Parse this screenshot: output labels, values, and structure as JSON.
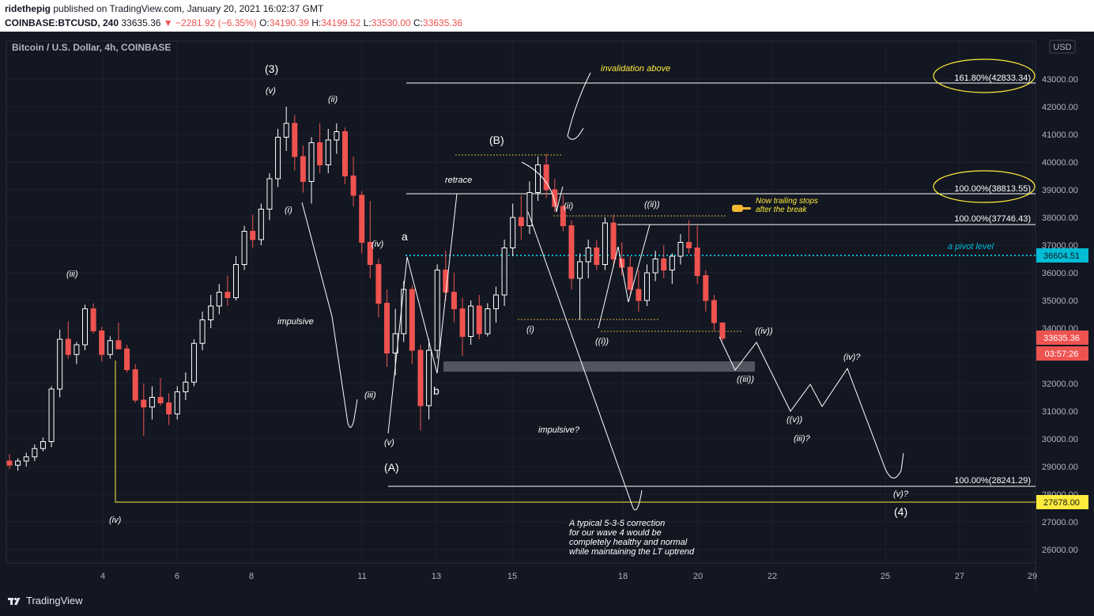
{
  "header": {
    "user": "ridethepig",
    "published": " published on TradingView.com, January 20, 2021 16:02:37 GMT",
    "symbol": "COINBASE:BTCUSD, 240",
    "last": "33635.36",
    "change": "−2281.92 (−6.35%)",
    "o_label": "O:",
    "o": "34190.39",
    "h_label": "H:",
    "h": "34199.52",
    "l_label": "L:",
    "l": "33530.00",
    "c_label": "C:",
    "c": "33635.36"
  },
  "chart_title": "Bitcoin / U.S. Dollar, 4h, COINBASE",
  "currency": "USD",
  "price_badges": {
    "pivot": "36604.51",
    "last": "33635.36",
    "countdown": "03:57:26",
    "yellow": "27678.00"
  },
  "fib_labels": {
    "f1618": "161.80%(42833.34)",
    "f100a": "100.00%(38813.55)",
    "f100b": "100.00%(37746.43)",
    "f100c": "100.00%(28241.29)"
  },
  "annotations": {
    "w3": "(3)",
    "v_top": "(v)",
    "ii_top": "(ii)",
    "iii_left": "(iii)",
    "i_mid": "(i)",
    "impulsive": "impulsive",
    "iv_mid": "(iv)",
    "iii_low": "(iii)",
    "v_low": "(v)",
    "A": "(A)",
    "a": "a",
    "b": "b",
    "retrace": "retrace",
    "B": "(B)",
    "invalidation": "invalidation above",
    "ii_b": "(ii)",
    "i_b": "(i)",
    "ii2": "((ii))",
    "i2": "((i))",
    "trailing1": "Now trailing stops",
    "trailing2": "after the break",
    "pivot_text": "a pivot level",
    "iv2": "((iv))",
    "iii2": "((iii))",
    "v2": "((v))",
    "iii_q": "(iii)?",
    "iv_q": "(iv)?",
    "v_q": "(v)?",
    "w4": "(4)",
    "impulsive_q": "impulsive?",
    "iv_left": "(iv)",
    "note1": "A typical 5-3-5 correction",
    "note2": "for our wave 4 would be",
    "note3": "completely healthy and normal",
    "note4": "while maintaining the LT uptrend"
  },
  "footer": {
    "brand": "TradingView"
  },
  "colors": {
    "up": "#ffffff",
    "down": "#ef5350",
    "pivot": "#00bcd4",
    "yellow": "#ffeb3b",
    "bg": "#131722"
  },
  "chart_data": {
    "type": "candlestick",
    "title": "Bitcoin / U.S. Dollar, 4h, COINBASE",
    "y_ticks": [
      26000,
      27000,
      28000,
      29000,
      30000,
      31000,
      32000,
      33000,
      34000,
      35000,
      36000,
      37000,
      38000,
      39000,
      40000,
      41000,
      42000,
      43000
    ],
    "x_ticks": [
      "4",
      "6",
      "8",
      "11",
      "13",
      "15",
      "18",
      "20",
      "22",
      "25",
      "27",
      "29"
    ],
    "ylim": [
      25400,
      44300
    ],
    "levels": {
      "fib_161_8": 42833.34,
      "fib_100_a": 38813.55,
      "fib_100_b": 37746.43,
      "fib_100_c": 28241.29,
      "pivot": 36604.51,
      "yellow_support": 27678.0,
      "last": 33635.36
    },
    "candles": [
      [
        29200,
        29450,
        28900,
        29050
      ],
      [
        29050,
        29300,
        28850,
        29200
      ],
      [
        29200,
        29500,
        29000,
        29350
      ],
      [
        29350,
        29800,
        29200,
        29650
      ],
      [
        29650,
        30050,
        29550,
        29900
      ],
      [
        29900,
        31900,
        29700,
        31800
      ],
      [
        31800,
        33950,
        31500,
        33600
      ],
      [
        33600,
        34250,
        32900,
        33050
      ],
      [
        33050,
        33500,
        32700,
        33400
      ],
      [
        33400,
        34850,
        33200,
        34700
      ],
      [
        34700,
        34900,
        33800,
        33900
      ],
      [
        33900,
        34050,
        32800,
        33050
      ],
      [
        33050,
        33700,
        32900,
        33550
      ],
      [
        33550,
        34200,
        33400,
        33250
      ],
      [
        33250,
        33400,
        32400,
        32500
      ],
      [
        32500,
        32700,
        31300,
        31400
      ],
      [
        31400,
        32000,
        30100,
        31150
      ],
      [
        31150,
        31900,
        30700,
        31500
      ],
      [
        31500,
        32200,
        31200,
        31300
      ],
      [
        31300,
        31650,
        30500,
        30900
      ],
      [
        30900,
        31900,
        30700,
        31700
      ],
      [
        31700,
        32400,
        31400,
        32050
      ],
      [
        32050,
        33600,
        31900,
        33450
      ],
      [
        33450,
        34600,
        33200,
        34300
      ],
      [
        34300,
        35200,
        34000,
        34800
      ],
      [
        34800,
        35600,
        34500,
        35300
      ],
      [
        35300,
        35900,
        34800,
        35100
      ],
      [
        35100,
        36600,
        35000,
        36300
      ],
      [
        36300,
        37700,
        36100,
        37500
      ],
      [
        37500,
        38100,
        36900,
        37200
      ],
      [
        37200,
        38500,
        37000,
        38300
      ],
      [
        38300,
        39600,
        37900,
        39400
      ],
      [
        39400,
        41200,
        39100,
        40900
      ],
      [
        40900,
        42000,
        40400,
        41400
      ],
      [
        41400,
        41700,
        39700,
        40200
      ],
      [
        40200,
        40600,
        38900,
        39300
      ],
      [
        39300,
        40900,
        38500,
        40700
      ],
      [
        40700,
        41400,
        39600,
        39900
      ],
      [
        39900,
        41200,
        39600,
        40800
      ],
      [
        40800,
        41400,
        40300,
        41100
      ],
      [
        41100,
        41250,
        39200,
        39500
      ],
      [
        39500,
        40200,
        38400,
        38800
      ],
      [
        38800,
        38950,
        36700,
        37100
      ],
      [
        37100,
        38600,
        35800,
        36300
      ],
      [
        36300,
        36500,
        34400,
        34900
      ],
      [
        34900,
        35400,
        32600,
        33100
      ],
      [
        33100,
        34700,
        32300,
        33800
      ],
      [
        33800,
        35700,
        33500,
        35400
      ],
      [
        35400,
        35550,
        32700,
        33200
      ],
      [
        33200,
        33400,
        30300,
        31200
      ],
      [
        31200,
        33600,
        30700,
        33200
      ],
      [
        33200,
        36300,
        32900,
        36100
      ],
      [
        36100,
        36800,
        35000,
        35300
      ],
      [
        35300,
        36000,
        34200,
        34700
      ],
      [
        34700,
        35100,
        33000,
        33700
      ],
      [
        33700,
        35000,
        33400,
        34800
      ],
      [
        34800,
        35200,
        33600,
        33800
      ],
      [
        33800,
        34900,
        33700,
        34700
      ],
      [
        34700,
        35500,
        34200,
        35200
      ],
      [
        35200,
        37200,
        34800,
        36900
      ],
      [
        36900,
        38500,
        36600,
        38000
      ],
      [
        38000,
        38800,
        37200,
        37700
      ],
      [
        37700,
        39300,
        37400,
        38900
      ],
      [
        38900,
        40200,
        38600,
        39900
      ],
      [
        39900,
        40300,
        38700,
        39000
      ],
      [
        39000,
        39400,
        38200,
        38400
      ],
      [
        38400,
        38800,
        37500,
        37700
      ],
      [
        37700,
        37900,
        35400,
        35800
      ],
      [
        35800,
        36700,
        34300,
        36400
      ],
      [
        36400,
        37200,
        35800,
        36900
      ],
      [
        36900,
        37200,
        36100,
        36300
      ],
      [
        36300,
        38000,
        36100,
        37800
      ],
      [
        37800,
        38100,
        36200,
        36500
      ],
      [
        36500,
        37100,
        35900,
        36200
      ],
      [
        36200,
        36600,
        35200,
        35400
      ],
      [
        35400,
        36100,
        34600,
        35000
      ],
      [
        35000,
        36300,
        34800,
        36000
      ],
      [
        36000,
        36800,
        35700,
        36500
      ],
      [
        36500,
        37000,
        35800,
        36100
      ],
      [
        36100,
        36700,
        35600,
        36600
      ],
      [
        36600,
        37400,
        36300,
        37100
      ],
      [
        37100,
        37900,
        36700,
        36900
      ],
      [
        36900,
        37700,
        35600,
        35900
      ],
      [
        35900,
        36100,
        34600,
        35000
      ],
      [
        35000,
        35200,
        33900,
        34200
      ],
      [
        34190,
        34200,
        33530,
        33635
      ]
    ]
  }
}
